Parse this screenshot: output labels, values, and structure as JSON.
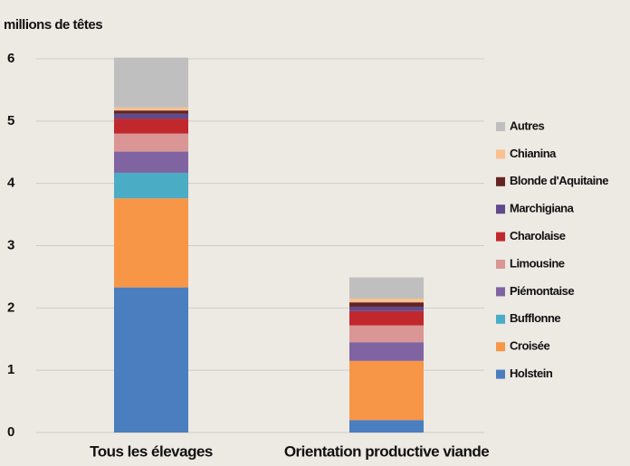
{
  "chart_data": {
    "type": "stacked_bar",
    "y_label": "millions de têtes",
    "categories": [
      "Tous les élevages",
      "Orientation productive viande"
    ],
    "series": [
      {
        "name": "Holstein",
        "color": "#4a7ebf",
        "values": [
          2.33,
          0.2
        ]
      },
      {
        "name": "Croisée",
        "color": "#f79646",
        "values": [
          1.43,
          0.95
        ]
      },
      {
        "name": "Bufflonne",
        "color": "#4bacc6",
        "values": [
          0.41,
          0
        ]
      },
      {
        "name": "Piémontaise",
        "color": "#8064a2",
        "values": [
          0.34,
          0.3
        ]
      },
      {
        "name": "Limousine",
        "color": "#d99694",
        "values": [
          0.29,
          0.27
        ]
      },
      {
        "name": "Charolaise",
        "color": "#c0282d",
        "values": [
          0.24,
          0.23
        ]
      },
      {
        "name": "Marchigiana",
        "color": "#5f4a8b",
        "values": [
          0.08,
          0.07
        ]
      },
      {
        "name": "Blonde d'Aquitaine",
        "color": "#632523",
        "values": [
          0.05,
          0.07
        ]
      },
      {
        "name": "Chianina",
        "color": "#fac090",
        "values": [
          0.05,
          0.06
        ]
      },
      {
        "name": "Autres",
        "color": "#bfbfbf",
        "values": [
          0.8,
          0.34
        ]
      }
    ],
    "ylim": [
      0,
      6
    ],
    "yticks": [
      0,
      1,
      2,
      3,
      4,
      5,
      6
    ],
    "grid": true,
    "legend": "right"
  }
}
